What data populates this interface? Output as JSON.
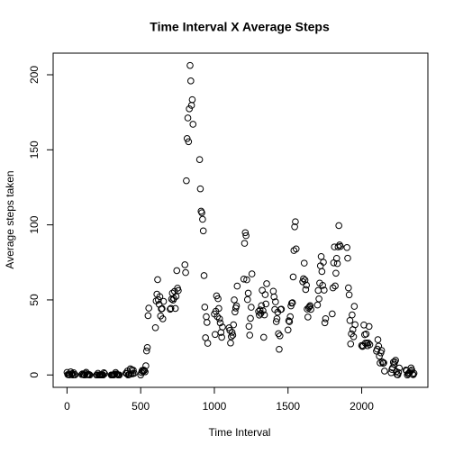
{
  "chart_data": {
    "type": "scatter",
    "title": "Time Interval X Average Steps",
    "x_label": "Time Interval",
    "y_label": "Average steps taken",
    "xlim": [
      -94.2,
      2449.2
    ],
    "ylim": [
      -8.25,
      214.4
    ],
    "xticks": [
      0,
      500,
      1000,
      1500,
      2000
    ],
    "yticks": [
      0,
      50,
      100,
      150,
      200
    ],
    "color": "#000000",
    "grid": false,
    "x": [
      0,
      5,
      10,
      15,
      20,
      25,
      30,
      35,
      40,
      45,
      50,
      55,
      100,
      105,
      110,
      115,
      120,
      125,
      130,
      135,
      140,
      145,
      150,
      155,
      200,
      205,
      210,
      215,
      220,
      225,
      230,
      235,
      240,
      245,
      250,
      255,
      300,
      305,
      310,
      315,
      320,
      325,
      330,
      335,
      340,
      345,
      350,
      355,
      400,
      405,
      410,
      415,
      420,
      425,
      430,
      435,
      440,
      445,
      450,
      455,
      500,
      505,
      510,
      515,
      520,
      525,
      530,
      535,
      540,
      545,
      550,
      555,
      600,
      605,
      610,
      615,
      620,
      625,
      630,
      635,
      640,
      645,
      650,
      655,
      700,
      705,
      710,
      715,
      720,
      725,
      730,
      735,
      740,
      745,
      750,
      755,
      800,
      805,
      810,
      815,
      820,
      825,
      830,
      835,
      840,
      845,
      850,
      855,
      900,
      905,
      910,
      915,
      920,
      925,
      930,
      935,
      940,
      945,
      950,
      955,
      1000,
      1005,
      1010,
      1015,
      1020,
      1025,
      1030,
      1035,
      1040,
      1045,
      1050,
      1055,
      1100,
      1105,
      1110,
      1115,
      1120,
      1125,
      1130,
      1135,
      1140,
      1145,
      1150,
      1155,
      1200,
      1205,
      1210,
      1215,
      1220,
      1225,
      1230,
      1235,
      1240,
      1245,
      1250,
      1255,
      1300,
      1305,
      1310,
      1315,
      1320,
      1325,
      1330,
      1335,
      1340,
      1345,
      1350,
      1355,
      1400,
      1405,
      1410,
      1415,
      1420,
      1425,
      1430,
      1435,
      1440,
      1445,
      1450,
      1455,
      1500,
      1505,
      1510,
      1515,
      1520,
      1525,
      1530,
      1535,
      1540,
      1545,
      1550,
      1555,
      1600,
      1605,
      1610,
      1615,
      1620,
      1625,
      1630,
      1635,
      1640,
      1645,
      1650,
      1655,
      1700,
      1705,
      1710,
      1715,
      1720,
      1725,
      1730,
      1735,
      1740,
      1745,
      1750,
      1755,
      1800,
      1805,
      1810,
      1815,
      1820,
      1825,
      1830,
      1835,
      1840,
      1845,
      1850,
      1855,
      1900,
      1905,
      1910,
      1915,
      1920,
      1925,
      1930,
      1935,
      1940,
      1945,
      1950,
      1955,
      2000,
      2005,
      2010,
      2015,
      2020,
      2025,
      2030,
      2035,
      2040,
      2045,
      2050,
      2055,
      2100,
      2105,
      2110,
      2115,
      2120,
      2125,
      2130,
      2135,
      2140,
      2145,
      2150,
      2155,
      2200,
      2205,
      2210,
      2215,
      2220,
      2225,
      2230,
      2235,
      2240,
      2245,
      2250,
      2255,
      2300,
      2305,
      2310,
      2315,
      2320,
      2325,
      2330,
      2335,
      2340,
      2345,
      2350,
      2355
    ],
    "values": [
      1.7,
      0.3,
      0.1,
      0.2,
      0.1,
      2.1,
      0.5,
      0.9,
      0,
      1.5,
      0.3,
      0.1,
      0.3,
      0.7,
      0.2,
      0.3,
      0,
      1.1,
      1.8,
      0.2,
      0.2,
      0.4,
      0.3,
      0,
      0,
      0,
      1.1,
      0,
      0,
      0.1,
      0,
      0.2,
      0,
      0,
      1.5,
      0.9,
      0,
      0,
      0,
      0,
      0.2,
      0.6,
      1.6,
      0.6,
      0.5,
      0.1,
      0,
      0,
      1.2,
      0.9,
      2.6,
      0,
      0.3,
      0.4,
      4.1,
      0.7,
      3.5,
      0.8,
      3.1,
      1.1,
      0,
      1.6,
      3.0,
      2.2,
      3.3,
      3.0,
      2.1,
      6.1,
      16.0,
      18.3,
      39.5,
      44.5,
      31.5,
      49.3,
      53.8,
      63.5,
      50.0,
      47.1,
      52.2,
      39.3,
      44.0,
      44.2,
      37.4,
      49.0,
      43.8,
      44.4,
      50.5,
      54.5,
      49.9,
      51.0,
      55.7,
      44.3,
      52.3,
      69.5,
      57.8,
      56.2,
      73.4,
      68.2,
      129.4,
      157.5,
      171.2,
      155.4,
      177.3,
      206.2,
      195.9,
      179.6,
      183.4,
      167.0,
      143.5,
      124.0,
      109.1,
      108.1,
      103.7,
      96.0,
      66.2,
      45.2,
      24.8,
      38.8,
      35.0,
      21.1,
      40.6,
      27.0,
      42.4,
      52.7,
      38.9,
      50.8,
      44.3,
      37.4,
      34.7,
      28.3,
      25.1,
      31.9,
      31.4,
      29.7,
      21.3,
      25.5,
      28.4,
      26.5,
      33.4,
      50.0,
      42.0,
      44.6,
      46.0,
      59.2,
      63.9,
      87.7,
      94.8,
      92.8,
      63.4,
      50.2,
      54.5,
      32.4,
      26.5,
      37.7,
      45.1,
      67.3,
      42.3,
      39.9,
      43.3,
      41.0,
      46.2,
      56.4,
      42.8,
      25.1,
      40.0,
      53.5,
      47.3,
      60.8,
      55.8,
      52.0,
      43.6,
      48.7,
      35.5,
      37.5,
      41.8,
      27.5,
      17.1,
      26.1,
      43.6,
      43.8,
      30.0,
      36.1,
      35.5,
      38.8,
      46.0,
      47.8,
      48.1,
      65.3,
      82.9,
      98.7,
      102.1,
      84.0,
      62.1,
      64.1,
      74.5,
      63.2,
      56.9,
      59.8,
      43.9,
      38.6,
      44.7,
      45.5,
      46.2,
      43.7,
      46.6,
      56.3,
      50.7,
      61.2,
      72.7,
      78.9,
      68.9,
      59.7,
      75.1,
      56.5,
      34.8,
      37.5,
      40.7,
      58.0,
      74.7,
      85.3,
      59.3,
      67.8,
      77.7,
      74.2,
      85.3,
      99.5,
      86.6,
      85.6,
      84.9,
      77.8,
      58.0,
      53.4,
      36.3,
      20.7,
      27.4,
      40.0,
      30.2,
      25.5,
      45.7,
      33.5,
      19.6,
      19.0,
      19.3,
      33.3,
      26.8,
      21.2,
      27.3,
      21.3,
      19.5,
      21.3,
      32.3,
      20.2,
      15.9,
      17.2,
      23.5,
      19.2,
      12.5,
      8.0,
      14.7,
      16.3,
      8.7,
      7.8,
      8.1,
      2.6,
      1.5,
      3.7,
      4.8,
      8.5,
      7.1,
      8.7,
      9.8,
      2.2,
      0.3,
      0.1,
      1.6,
      4.6,
      3.3,
      2.8,
      0,
      0.8,
      1.0,
      1.6,
      2.6,
      4.7,
      3.3,
      0.6,
      0.2,
      1.1
    ]
  }
}
